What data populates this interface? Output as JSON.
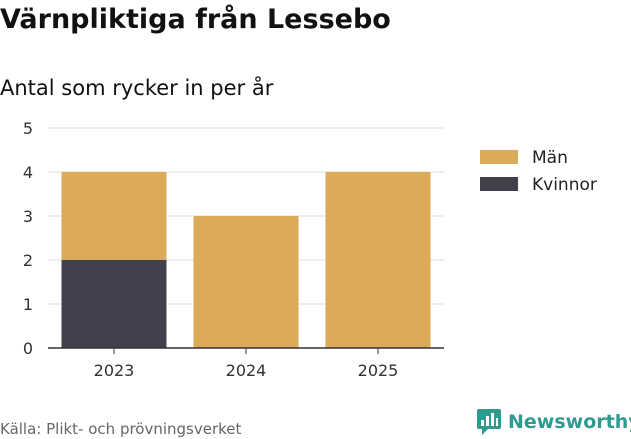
{
  "page": {
    "title": "Värnpliktiga från Lessebo",
    "subtitle": "Antal som rycker in per år",
    "source": "Källa: Plikt- och prövningsverket",
    "brand": "Newsworthy"
  },
  "colors": {
    "man": "#dbab5a",
    "kvinnor": "#43404d",
    "grid": "#dddddd",
    "axis": "#333333",
    "brand": "#2e9a90"
  },
  "chart_data": {
    "type": "bar",
    "stacked": true,
    "title": "Värnpliktiga från Lessebo",
    "subtitle": "Antal som rycker in per år",
    "xlabel": "",
    "ylabel": "",
    "categories": [
      "2023",
      "2024",
      "2025"
    ],
    "series": [
      {
        "name": "Kvinnor",
        "values": [
          2,
          0,
          0
        ],
        "color": "#43404d"
      },
      {
        "name": "Män",
        "values": [
          2,
          3,
          4
        ],
        "color": "#dbab5a"
      }
    ],
    "legend": [
      {
        "name": "Män",
        "color": "#dbab5a"
      },
      {
        "name": "Kvinnor",
        "color": "#43404d"
      }
    ],
    "yticks": [
      "0",
      "1",
      "2",
      "3",
      "4",
      "5"
    ],
    "ylim": [
      0,
      5
    ],
    "grid": true,
    "legend_position": "right"
  }
}
